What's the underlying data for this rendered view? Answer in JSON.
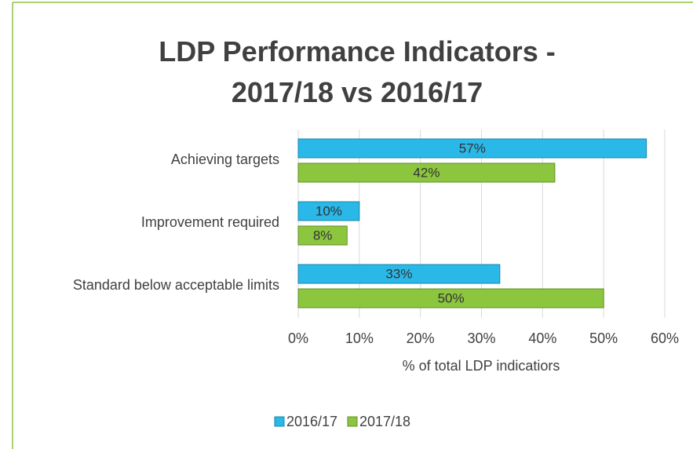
{
  "chart_data": {
    "type": "bar",
    "orientation": "horizontal",
    "title": "LDP Performance Indicators - 2017/18 vs 2016/17",
    "x_label": "% of total LDP indicatiors",
    "categories": [
      "Achieving targets",
      "Improvement required",
      "Standard below acceptable limits"
    ],
    "series": [
      {
        "name": "2016/17",
        "color": "#29b8e8",
        "values": [
          57,
          10,
          33
        ],
        "value_labels": [
          "57%",
          "10%",
          "33%"
        ]
      },
      {
        "name": "2017/18",
        "color": "#8cc63f",
        "values": [
          42,
          8,
          50
        ],
        "value_labels": [
          "42%",
          "8%",
          "50%"
        ]
      }
    ],
    "xlim": [
      0,
      60
    ],
    "xticks": [
      {
        "value": 0,
        "label": "0%"
      },
      {
        "value": 10,
        "label": "10%"
      },
      {
        "value": 20,
        "label": "20%"
      },
      {
        "value": 30,
        "label": "30%"
      },
      {
        "value": 40,
        "label": "40%"
      },
      {
        "value": 50,
        "label": "50%"
      },
      {
        "value": 60,
        "label": "60%"
      }
    ],
    "grid": true,
    "legend": "bottom"
  }
}
